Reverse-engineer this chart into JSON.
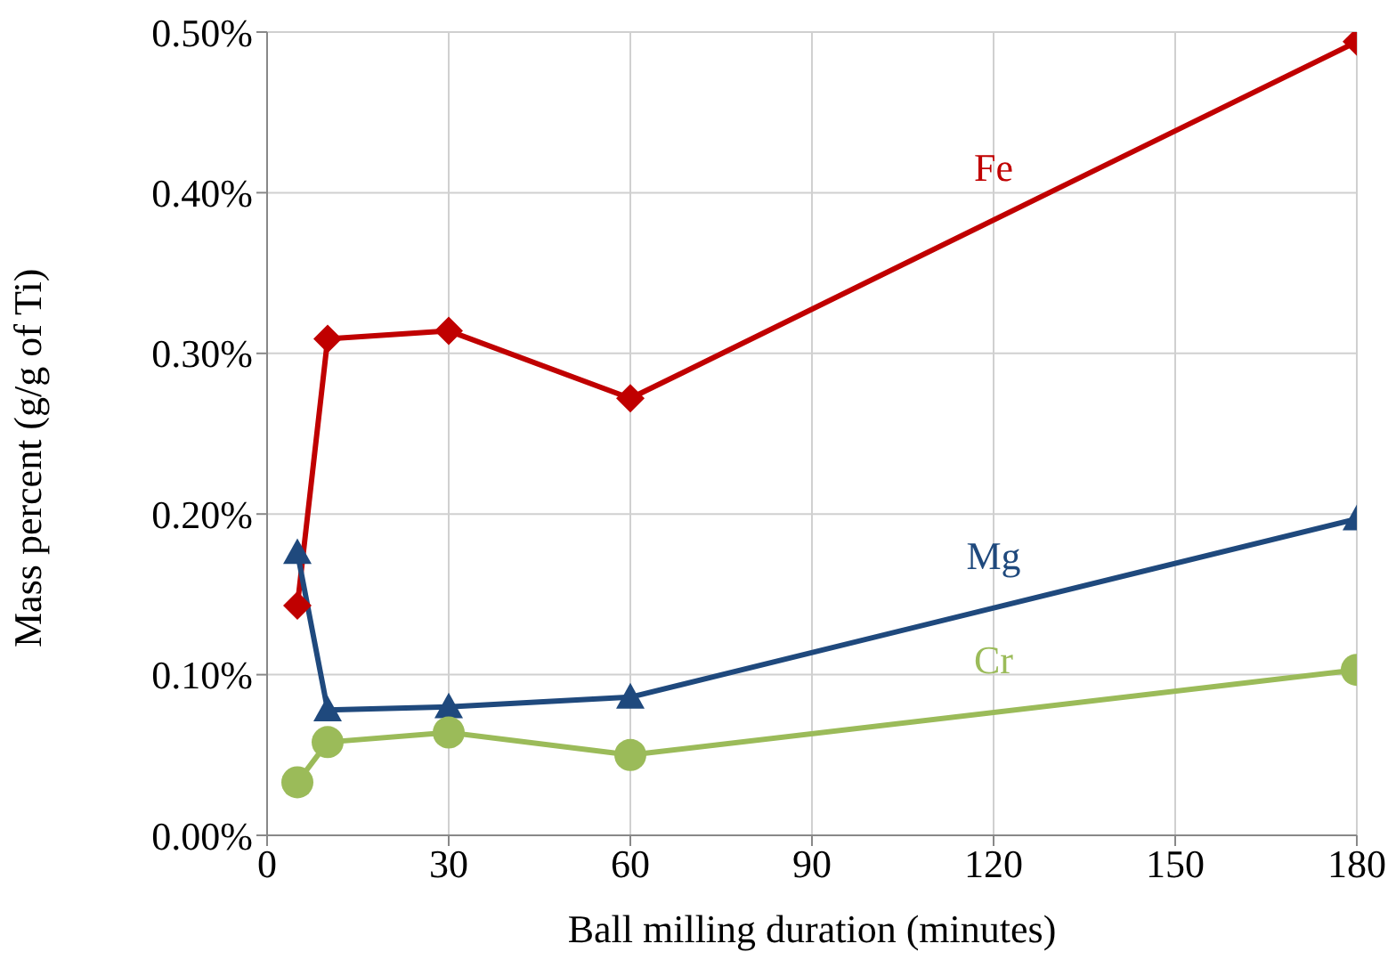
{
  "chart_data": {
    "type": "line",
    "xlabel": "Ball milling duration (minutes)",
    "ylabel": "Mass percent (g/g of Ti)",
    "xlim": [
      0,
      180
    ],
    "xticks": [
      0,
      30,
      60,
      90,
      120,
      150,
      180
    ],
    "ylim": [
      0,
      0.5
    ],
    "yticks": [
      {
        "value": 0,
        "label": "0.00%"
      },
      {
        "value": 0.1,
        "label": "0.10%"
      },
      {
        "value": 0.2,
        "label": "0.20%"
      },
      {
        "value": 0.3,
        "label": "0.30%"
      },
      {
        "value": 0.4,
        "label": "0.40%"
      },
      {
        "value": 0.5,
        "label": "0.50%"
      }
    ],
    "grid": true,
    "legend": false,
    "line_style": "solid",
    "series": [
      {
        "name": "Fe",
        "color": "#c00000",
        "marker": "diamond",
        "x": [
          5,
          10,
          30,
          60,
          180
        ],
        "values": [
          0.143,
          0.309,
          0.314,
          0.272,
          0.494
        ]
      },
      {
        "name": "Mg",
        "color": "#1f497d",
        "marker": "triangle",
        "x": [
          5,
          10,
          30,
          60,
          180
        ],
        "values": [
          0.176,
          0.078,
          0.08,
          0.086,
          0.197
        ]
      },
      {
        "name": "Cr",
        "color": "#9bbb59",
        "marker": "circle",
        "x": [
          5,
          10,
          30,
          60,
          180
        ],
        "values": [
          0.033,
          0.058,
          0.064,
          0.05,
          0.103
        ]
      }
    ]
  }
}
